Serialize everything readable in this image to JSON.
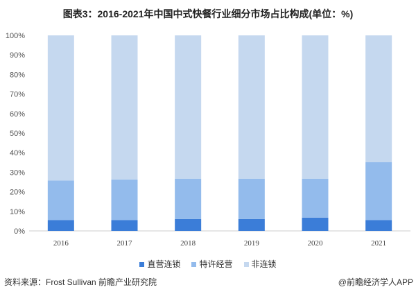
{
  "chart_data": {
    "type": "bar",
    "stacked": true,
    "title": "图表3：2016-2021年中国中式快餐行业细分市场占比构成(单位：%)",
    "categories": [
      "2016",
      "2017",
      "2018",
      "2019",
      "2020",
      "2021"
    ],
    "series": [
      {
        "name": "直营连锁",
        "values": [
          5.5,
          5.5,
          6.1,
          6.1,
          6.8,
          5.5
        ],
        "color": "#3b7dd8"
      },
      {
        "name": "特许经营",
        "values": [
          20.3,
          20.8,
          20.6,
          20.6,
          19.9,
          29.7
        ],
        "color": "#93bbec"
      },
      {
        "name": "非连锁",
        "values": [
          74.2,
          73.7,
          73.3,
          73.3,
          73.3,
          64.8
        ],
        "color": "#c5d8ef"
      }
    ],
    "ylim": [
      0,
      100
    ],
    "yticks": [
      "0%",
      "10%",
      "20%",
      "30%",
      "40%",
      "50%",
      "60%",
      "70%",
      "80%",
      "90%",
      "100%"
    ],
    "legend": "bottom",
    "grid": false
  },
  "source": "资料来源：Frost Sullivan 前瞻产业研究院",
  "credit": "@前瞻经济学人APP"
}
